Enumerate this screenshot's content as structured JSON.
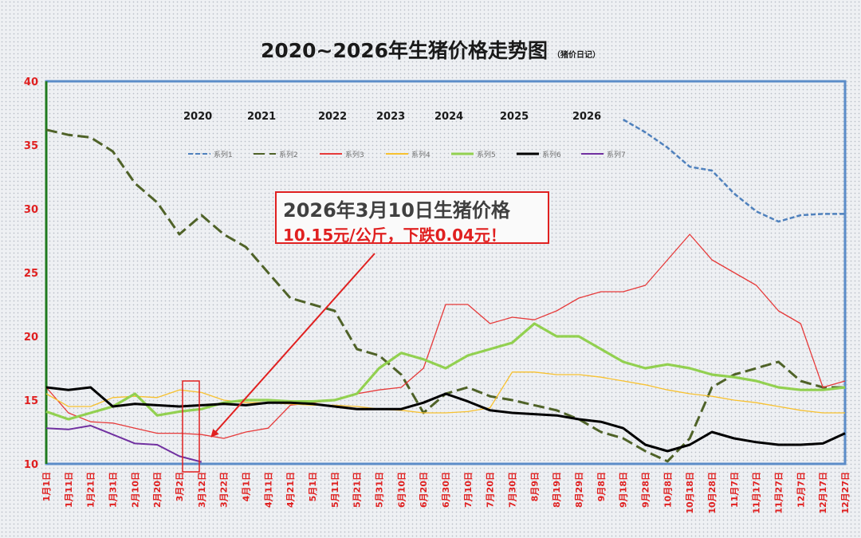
{
  "chart_data": {
    "type": "line",
    "title": "2020~2026年生猪价格走势图",
    "subtitle": "（猪价日记）",
    "xlabel": "",
    "ylabel": "",
    "ylim": [
      10,
      40
    ],
    "yticks": [
      10,
      15,
      20,
      25,
      30,
      35,
      40
    ],
    "grid": false,
    "x_tick_labels": [
      "1月1日",
      "1月11日",
      "1月21日",
      "1月31日",
      "2月10日",
      "2月20日",
      "3月2日",
      "3月12日",
      "3月22日",
      "4月1日",
      "4月11日",
      "4月21日",
      "5月1日",
      "5月11日",
      "5月21日",
      "5月31日",
      "6月10日",
      "6月20日",
      "6月30日",
      "7月10日",
      "7月20日",
      "7月30日",
      "8月9日",
      "8月19日",
      "8月29日",
      "9月8日",
      "9月18日",
      "9月28日",
      "10月8日",
      "10月18日",
      "10月28日",
      "11月7日",
      "11月17日",
      "11月27日",
      "12月7日",
      "12月17日",
      "12月27日"
    ],
    "year_labels": [
      "2020",
      "2021",
      "2022",
      "2023",
      "2024",
      "2025",
      "2026"
    ],
    "legend_position": "top",
    "series": [
      {
        "name": "系列1",
        "color": "#4f81bd",
        "dash": "6,3",
        "x": [
          26,
          27,
          28,
          29,
          30,
          31,
          32,
          33,
          34,
          35,
          36
        ],
        "values": [
          37.0,
          36.0,
          34.8,
          33.3,
          33.0,
          31.2,
          29.8,
          29.0,
          29.5,
          29.6,
          29.6
        ]
      },
      {
        "name": "系列2",
        "color": "#4f6228",
        "dash": "14,6",
        "x": [
          0,
          1,
          2,
          3,
          4,
          5,
          6,
          7,
          8,
          9,
          10,
          11,
          12,
          13,
          14,
          15,
          16,
          17,
          18,
          19,
          20,
          21,
          22,
          23,
          24,
          25,
          26,
          27,
          28,
          29,
          30,
          31,
          32,
          33,
          34,
          35,
          36
        ],
        "values": [
          36.2,
          35.8,
          35.6,
          34.5,
          32.0,
          30.5,
          28.0,
          29.5,
          28.0,
          27.0,
          25.0,
          23.0,
          22.5,
          22.0,
          19.0,
          18.5,
          17.0,
          14.0,
          15.5,
          16.0,
          15.3,
          15.0,
          14.6,
          14.2,
          13.5,
          12.5,
          12.0,
          11.0,
          10.2,
          12.0,
          16.0,
          17.0,
          17.5,
          18.0,
          16.5,
          16.0,
          16.0
        ]
      },
      {
        "name": "系列3",
        "color": "#e63a3a",
        "dash": "",
        "x": [
          0,
          1,
          2,
          3,
          4,
          5,
          6,
          7,
          8,
          9,
          10,
          11,
          12,
          13,
          14,
          15,
          16,
          17,
          18,
          19,
          20,
          21,
          22,
          23,
          24,
          25,
          26,
          27,
          28,
          29,
          30,
          31,
          32,
          33,
          34,
          35,
          36
        ],
        "values": [
          16.0,
          14.0,
          13.3,
          13.2,
          12.8,
          12.4,
          12.4,
          12.3,
          12.0,
          12.5,
          12.8,
          14.6,
          14.8,
          15.0,
          15.5,
          15.8,
          16.0,
          17.5,
          22.5,
          22.5,
          21.0,
          21.5,
          21.3,
          22.0,
          23.0,
          23.5,
          23.5,
          24.0,
          26.0,
          28.0,
          26.0,
          25.0,
          24.0,
          22.0,
          21.0,
          16.0,
          16.5
        ]
      },
      {
        "name": "系列4",
        "color": "#f7c12f",
        "dash": "",
        "x": [
          0,
          1,
          2,
          3,
          4,
          5,
          6,
          7,
          8,
          9,
          10,
          11,
          12,
          13,
          14,
          15,
          16,
          17,
          18,
          19,
          20,
          21,
          22,
          23,
          24,
          25,
          26,
          27,
          28,
          29,
          30,
          31,
          32,
          33,
          34,
          35,
          36
        ],
        "values": [
          15.5,
          14.5,
          14.5,
          15.2,
          15.3,
          15.2,
          15.8,
          15.6,
          15.0,
          14.8,
          14.8,
          14.7,
          14.6,
          14.6,
          14.5,
          14.3,
          14.2,
          14.0,
          14.0,
          14.1,
          14.4,
          17.2,
          17.2,
          17.0,
          17.0,
          16.8,
          16.5,
          16.2,
          15.8,
          15.5,
          15.3,
          15.0,
          14.8,
          14.5,
          14.2,
          14.0,
          14.0
        ]
      },
      {
        "name": "系列5",
        "color": "#92d050",
        "dash": "",
        "x": [
          0,
          1,
          2,
          3,
          4,
          5,
          6,
          7,
          8,
          9,
          10,
          11,
          12,
          13,
          14,
          15,
          16,
          17,
          18,
          19,
          20,
          21,
          22,
          23,
          24,
          25,
          26,
          27,
          28,
          29,
          30,
          31,
          32,
          33,
          34,
          35,
          36
        ],
        "values": [
          14.1,
          13.5,
          14.0,
          14.5,
          15.5,
          13.8,
          14.1,
          14.3,
          14.8,
          15.0,
          15.0,
          14.9,
          14.9,
          15.0,
          15.5,
          17.5,
          18.7,
          18.2,
          17.5,
          18.5,
          19.0,
          19.5,
          21.0,
          20.0,
          20.0,
          19.0,
          18.0,
          17.5,
          17.8,
          17.5,
          17.0,
          16.8,
          16.5,
          16.0,
          15.8,
          15.8,
          16.0
        ]
      },
      {
        "name": "系列6",
        "color": "#000000",
        "dash": "",
        "x": [
          0,
          1,
          2,
          3,
          4,
          5,
          6,
          7,
          8,
          9,
          10,
          11,
          12,
          13,
          14,
          15,
          16,
          17,
          18,
          19,
          20,
          21,
          22,
          23,
          24,
          25,
          26,
          27,
          28,
          29,
          30,
          31,
          32,
          33,
          34,
          35,
          36
        ],
        "values": [
          16.0,
          15.8,
          16.0,
          14.5,
          14.7,
          14.6,
          14.5,
          14.6,
          14.7,
          14.6,
          14.8,
          14.8,
          14.7,
          14.5,
          14.3,
          14.3,
          14.3,
          14.8,
          15.5,
          14.9,
          14.2,
          14.0,
          13.9,
          13.8,
          13.5,
          13.3,
          12.8,
          11.5,
          11.0,
          11.5,
          12.5,
          12.0,
          11.7,
          11.5,
          11.5,
          11.6,
          12.4
        ]
      },
      {
        "name": "系列7",
        "color": "#7030a0",
        "dash": "",
        "x": [
          0,
          1,
          2,
          3,
          4,
          5,
          6,
          7
        ],
        "values": [
          12.8,
          12.7,
          13.0,
          12.3,
          11.6,
          11.5,
          10.6,
          10.15
        ]
      }
    ],
    "annotation": {
      "line1": "2026年3月10日生猪价格",
      "line2": "10.15元/公斤，下跌0.04元！"
    }
  }
}
